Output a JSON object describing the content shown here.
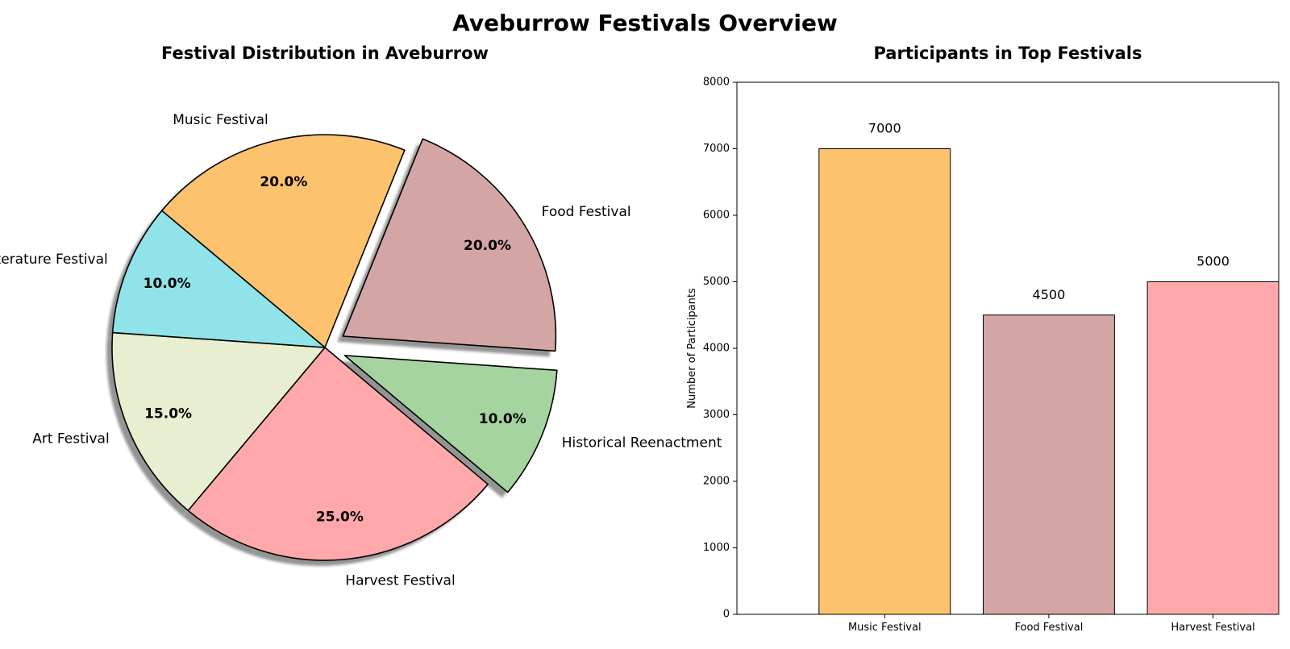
{
  "figure": {
    "title": "Aveburrow Festivals Overview"
  },
  "chart_data": [
    {
      "type": "pie",
      "title": "Festival Distribution in Aveburrow",
      "start_angle_deg": 140,
      "shadow": true,
      "slices": [
        {
          "label": "Music Festival",
          "value": 20.0,
          "pct_text": "20.0%",
          "color": "#FDC26D",
          "explode": 0.0
        },
        {
          "label": "Food Festival",
          "value": 20.0,
          "pct_text": "20.0%",
          "color": "#D4A5A5",
          "explode": 0.1
        },
        {
          "label": "Historical Reenactment",
          "value": 10.0,
          "pct_text": "10.0%",
          "color": "#A5D4A0",
          "explode": 0.1
        },
        {
          "label": "Harvest Festival",
          "value": 25.0,
          "pct_text": "25.0%",
          "color": "#FFA8AB",
          "explode": 0.0
        },
        {
          "label": "Art Festival",
          "value": 15.0,
          "pct_text": "15.0%",
          "color": "#E8EFD0",
          "explode": 0.0
        },
        {
          "label": "Literature Festival",
          "value": 10.0,
          "pct_text": "10.0%",
          "color": "#91E3EA",
          "explode": 0.0
        }
      ]
    },
    {
      "type": "bar",
      "title": "Participants in Top Festivals",
      "ylabel": "Number of Participants",
      "xlabel": "",
      "ylim": [
        0,
        8000
      ],
      "yticks": [
        0,
        1000,
        2000,
        3000,
        4000,
        5000,
        6000,
        7000,
        8000
      ],
      "grid": false,
      "categories": [
        "Music Festival",
        "Food Festival",
        "Harvest Festival"
      ],
      "values": [
        7000,
        4500,
        5000
      ],
      "colors": [
        "#FDC26D",
        "#D4A5A5",
        "#FFA8AB"
      ]
    }
  ]
}
